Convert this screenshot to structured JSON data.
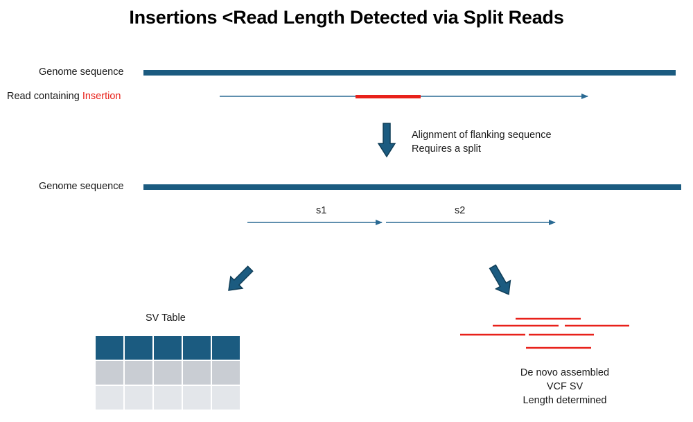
{
  "title": "Insertions <Read Length Detected via Split Reads",
  "top_section": {
    "genome_label": "Genome sequence",
    "read_label_prefix": "Read containing ",
    "read_label_highlight": "Insertion"
  },
  "step_note": {
    "line1": "Alignment of flanking sequence",
    "line2": "Requires a split"
  },
  "middle_section": {
    "genome_label": "Genome sequence",
    "split1_label": "s1",
    "split2_label": "s2"
  },
  "sv_table": {
    "title": "SV Table",
    "rows": 3,
    "cols": 5
  },
  "assembly_note": {
    "line1": "De novo assembled",
    "line2": "VCF SV",
    "line3": "Length determined"
  },
  "colors": {
    "genome": "#1b5b80",
    "read": "#2a6a93",
    "insertion": "#e8211a",
    "arrow": "#1b5b80"
  }
}
